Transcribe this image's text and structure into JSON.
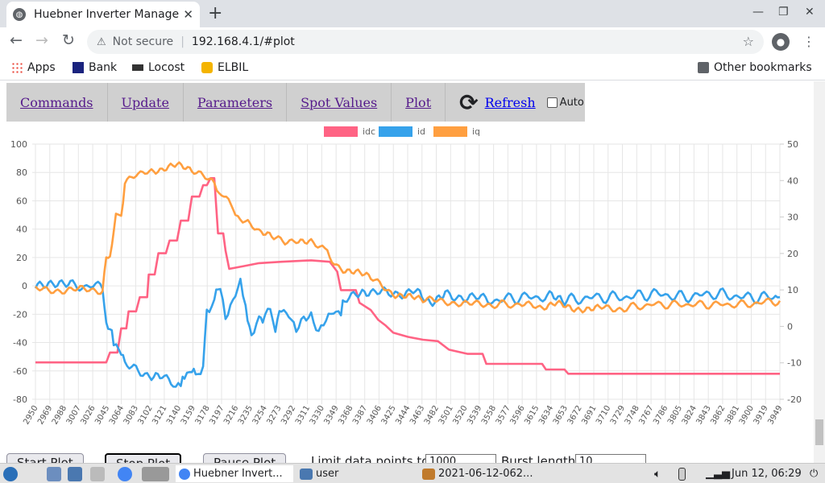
{
  "browser": {
    "tab_title": "Huebner Inverter Manage",
    "new_tab": "+",
    "url_warning": "Not secure",
    "url": "192.168.4.1/#plot",
    "bookmarks": [
      "Apps",
      "Bank",
      "Locost",
      "ELBIL"
    ],
    "other_bookmarks": "Other bookmarks"
  },
  "nav": {
    "items": [
      "Commands",
      "Update",
      "Parameters",
      "Spot Values",
      "Plot"
    ],
    "refresh": "Refresh",
    "auto": "Auto"
  },
  "chart_data": {
    "type": "line",
    "title": "",
    "legend_position": "top-center",
    "grid": true,
    "x_ticks": [
      "2950",
      "2969",
      "2988",
      "3007",
      "3026",
      "3045",
      "3064",
      "3083",
      "3102",
      "3121",
      "3140",
      "3159",
      "3178",
      "3197",
      "3216",
      "3235",
      "3254",
      "3273",
      "3292",
      "3311",
      "3330",
      "3349",
      "3368",
      "3387",
      "3406",
      "3425",
      "3444",
      "3463",
      "3482",
      "3501",
      "3520",
      "3539",
      "3558",
      "3577",
      "3596",
      "3615",
      "3634",
      "3653",
      "3672",
      "3691",
      "3710",
      "3729",
      "3748",
      "3767",
      "3786",
      "3805",
      "3824",
      "3843",
      "3862",
      "3881",
      "3900",
      "3919",
      "3949"
    ],
    "xlim": [
      2950,
      3949
    ],
    "y_left_ticks": [
      100,
      80,
      60,
      40,
      20,
      0,
      -20,
      -40,
      -60,
      -80
    ],
    "ylim_left": [
      -80,
      100
    ],
    "y_right_ticks": [
      50,
      40,
      30,
      20,
      10,
      0,
      -10,
      -20
    ],
    "ylim_right": [
      -20,
      50
    ],
    "series": [
      {
        "name": "idc",
        "color": "#ff6384",
        "axis": "left",
        "points": [
          [
            2950,
            -54
          ],
          [
            3045,
            -54
          ],
          [
            3050,
            -47
          ],
          [
            3060,
            -47
          ],
          [
            3065,
            -30
          ],
          [
            3072,
            -30
          ],
          [
            3075,
            -18
          ],
          [
            3085,
            -18
          ],
          [
            3090,
            -8
          ],
          [
            3100,
            -8
          ],
          [
            3102,
            8
          ],
          [
            3110,
            8
          ],
          [
            3115,
            23
          ],
          [
            3125,
            23
          ],
          [
            3130,
            32
          ],
          [
            3140,
            32
          ],
          [
            3145,
            46
          ],
          [
            3155,
            46
          ],
          [
            3160,
            63
          ],
          [
            3170,
            63
          ],
          [
            3175,
            71
          ],
          [
            3180,
            71
          ],
          [
            3185,
            76
          ],
          [
            3190,
            76
          ],
          [
            3195,
            37
          ],
          [
            3202,
            37
          ],
          [
            3205,
            25
          ],
          [
            3210,
            12
          ],
          [
            3230,
            14
          ],
          [
            3250,
            16
          ],
          [
            3280,
            17
          ],
          [
            3320,
            18
          ],
          [
            3345,
            17
          ],
          [
            3355,
            10
          ],
          [
            3360,
            -3
          ],
          [
            3380,
            -3
          ],
          [
            3385,
            -12
          ],
          [
            3400,
            -17
          ],
          [
            3410,
            -24
          ],
          [
            3420,
            -28
          ],
          [
            3430,
            -33
          ],
          [
            3450,
            -36
          ],
          [
            3470,
            -38
          ],
          [
            3490,
            -39
          ],
          [
            3505,
            -45
          ],
          [
            3530,
            -48
          ],
          [
            3550,
            -48
          ],
          [
            3555,
            -55
          ],
          [
            3620,
            -55
          ],
          [
            3630,
            -55
          ],
          [
            3635,
            -59
          ],
          [
            3660,
            -59
          ],
          [
            3665,
            -62
          ],
          [
            3949,
            -62
          ]
        ]
      },
      {
        "name": "id",
        "color": "#36a2eb",
        "axis": "right",
        "points": [
          [
            2950,
            11
          ],
          [
            3000,
            11
          ],
          [
            3040,
            11
          ],
          [
            3045,
            0
          ],
          [
            3050,
            0
          ],
          [
            3055,
            -5
          ],
          [
            3065,
            -6
          ],
          [
            3070,
            -11
          ],
          [
            3085,
            -12
          ],
          [
            3100,
            -13
          ],
          [
            3120,
            -14
          ],
          [
            3135,
            -15
          ],
          [
            3145,
            -17
          ],
          [
            3150,
            -13
          ],
          [
            3160,
            -12
          ],
          [
            3165,
            -13
          ],
          [
            3175,
            -11
          ],
          [
            3180,
            5
          ],
          [
            3190,
            7
          ],
          [
            3198,
            12
          ],
          [
            3205,
            3
          ],
          [
            3215,
            6
          ],
          [
            3225,
            12
          ],
          [
            3232,
            6
          ],
          [
            3240,
            -3
          ],
          [
            3250,
            3
          ],
          [
            3255,
            1
          ],
          [
            3265,
            6
          ],
          [
            3272,
            -1
          ],
          [
            3280,
            5
          ],
          [
            3290,
            4
          ],
          [
            3300,
            -2
          ],
          [
            3310,
            2
          ],
          [
            3320,
            4
          ],
          [
            3330,
            -2
          ],
          [
            3340,
            1
          ],
          [
            3350,
            5
          ],
          [
            3360,
            4
          ],
          [
            3365,
            7
          ],
          [
            3380,
            8
          ],
          [
            3400,
            9
          ],
          [
            3430,
            9
          ],
          [
            3460,
            10
          ],
          [
            3480,
            7
          ],
          [
            3500,
            9
          ],
          [
            3530,
            8
          ],
          [
            3560,
            7
          ],
          [
            3600,
            8
          ],
          [
            3640,
            8
          ],
          [
            3660,
            7
          ],
          [
            3700,
            8
          ],
          [
            3740,
            8
          ],
          [
            3780,
            9
          ],
          [
            3820,
            8
          ],
          [
            3860,
            9
          ],
          [
            3900,
            8
          ],
          [
            3940,
            8
          ],
          [
            3949,
            8
          ]
        ]
      },
      {
        "name": "iq",
        "color": "#ff9f40",
        "axis": "right",
        "points": [
          [
            2950,
            10
          ],
          [
            3040,
            10
          ],
          [
            3045,
            19
          ],
          [
            3050,
            19
          ],
          [
            3058,
            30
          ],
          [
            3065,
            30
          ],
          [
            3070,
            39
          ],
          [
            3085,
            42
          ],
          [
            3100,
            43
          ],
          [
            3120,
            43
          ],
          [
            3140,
            44
          ],
          [
            3160,
            43
          ],
          [
            3175,
            41
          ],
          [
            3190,
            39
          ],
          [
            3200,
            36
          ],
          [
            3215,
            33
          ],
          [
            3225,
            29
          ],
          [
            3235,
            28
          ],
          [
            3250,
            26
          ],
          [
            3270,
            24
          ],
          [
            3285,
            23
          ],
          [
            3300,
            24
          ],
          [
            3320,
            23
          ],
          [
            3335,
            22
          ],
          [
            3345,
            19
          ],
          [
            3360,
            16
          ],
          [
            3380,
            15
          ],
          [
            3400,
            13
          ],
          [
            3415,
            11
          ],
          [
            3430,
            9
          ],
          [
            3450,
            8
          ],
          [
            3470,
            7
          ],
          [
            3500,
            7
          ],
          [
            3530,
            6
          ],
          [
            3560,
            6
          ],
          [
            3600,
            6
          ],
          [
            3630,
            5
          ],
          [
            3650,
            6
          ],
          [
            3670,
            5
          ],
          [
            3690,
            5
          ],
          [
            3710,
            5
          ],
          [
            3740,
            5
          ],
          [
            3780,
            6
          ],
          [
            3820,
            6
          ],
          [
            3860,
            6
          ],
          [
            3900,
            6
          ],
          [
            3949,
            7
          ]
        ]
      }
    ]
  },
  "plot_controls": {
    "start": "Start Plot",
    "stop": "Stop Plot",
    "pause": "Pause Plot",
    "limit_label": "Limit data points to:",
    "limit_value": "1000",
    "burst_label": "Burst length:",
    "burst_value": "10"
  },
  "taskbar": {
    "chrome_task": "Huebner Invert...",
    "folder_task": "user",
    "image_task": "2021-06-12-062...",
    "clock": "Jun 12, 06:29"
  }
}
